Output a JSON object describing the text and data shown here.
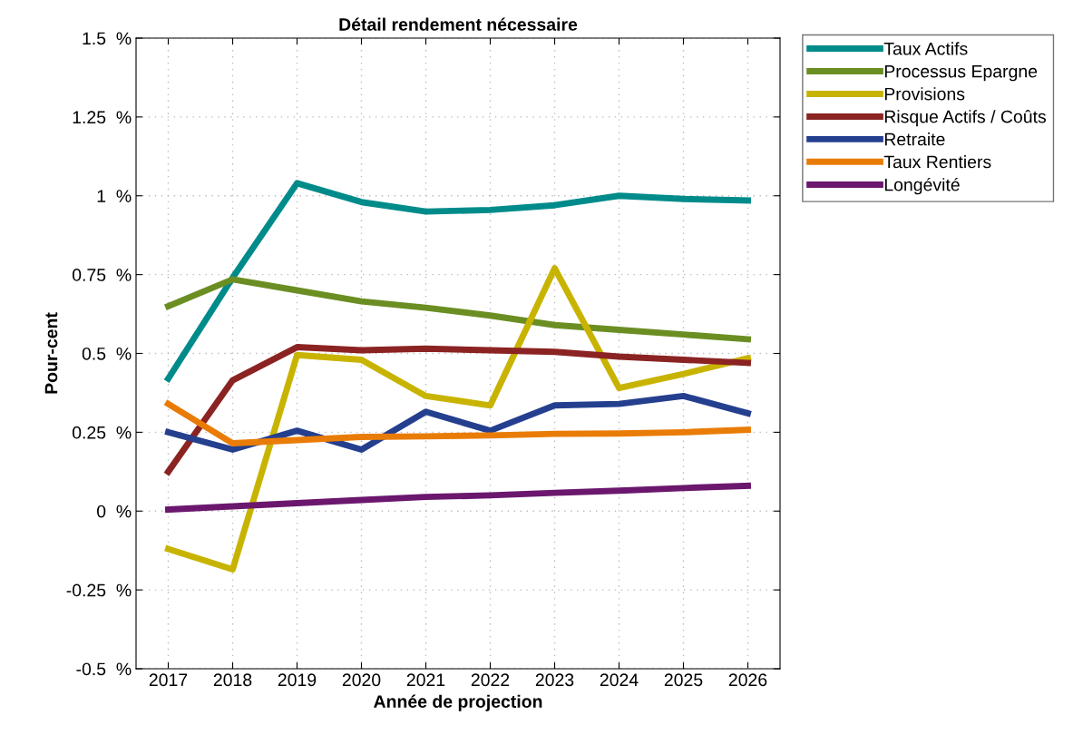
{
  "chart_data": {
    "type": "line",
    "title": "Détail rendement nécessaire",
    "xlabel": "Année de projection",
    "ylabel": "Pour-cent",
    "categories": [
      "2017",
      "2018",
      "2019",
      "2020",
      "2021",
      "2022",
      "2023",
      "2024",
      "2025",
      "2026"
    ],
    "series": [
      {
        "name": "Taux Actifs",
        "color": "#008b8b",
        "values": [
          0.42,
          0.74,
          1.04,
          0.98,
          0.95,
          0.955,
          0.97,
          1.0,
          0.99,
          0.985
        ]
      },
      {
        "name": "Processus Epargne",
        "color": "#6b8e23",
        "values": [
          0.65,
          0.735,
          0.7,
          0.665,
          0.645,
          0.62,
          0.59,
          0.575,
          0.56,
          0.545
        ]
      },
      {
        "name": "Provisions",
        "color": "#c8b400",
        "values": [
          -0.12,
          -0.185,
          0.495,
          0.48,
          0.365,
          0.335,
          0.77,
          0.39,
          0.435,
          0.485
        ]
      },
      {
        "name": "Risque Actifs / Coûts",
        "color": "#8b2323",
        "values": [
          0.125,
          0.415,
          0.52,
          0.51,
          0.515,
          0.51,
          0.505,
          0.49,
          0.48,
          0.47
        ]
      },
      {
        "name": "Retraite",
        "color": "#253f8f",
        "values": [
          0.25,
          0.195,
          0.255,
          0.195,
          0.315,
          0.255,
          0.335,
          0.34,
          0.365,
          0.31
        ]
      },
      {
        "name": "Taux Rentiers",
        "color": "#e97c07",
        "values": [
          0.34,
          0.215,
          0.225,
          0.235,
          0.237,
          0.24,
          0.245,
          0.246,
          0.25,
          0.258
        ]
      },
      {
        "name": "Longévité",
        "color": "#6b176e",
        "values": [
          0.005,
          0.015,
          0.025,
          0.035,
          0.045,
          0.05,
          0.058,
          0.065,
          0.073,
          0.08
        ]
      }
    ],
    "ylim": [
      -0.5,
      1.5
    ],
    "yticks": [
      {
        "value": -0.5,
        "label": "-0.5  %"
      },
      {
        "value": -0.25,
        "label": "-0.25  %"
      },
      {
        "value": 0,
        "label": "0  %"
      },
      {
        "value": 0.25,
        "label": "0.25  %"
      },
      {
        "value": 0.5,
        "label": "0.5  %"
      },
      {
        "value": 0.75,
        "label": "0.75  %"
      },
      {
        "value": 1,
        "label": "1  %"
      },
      {
        "value": 1.25,
        "label": "1.25  %"
      },
      {
        "value": 1.5,
        "label": "1.5  %"
      }
    ],
    "grid": true,
    "legend": "top right",
    "line_style": "solid",
    "marker": "none"
  }
}
